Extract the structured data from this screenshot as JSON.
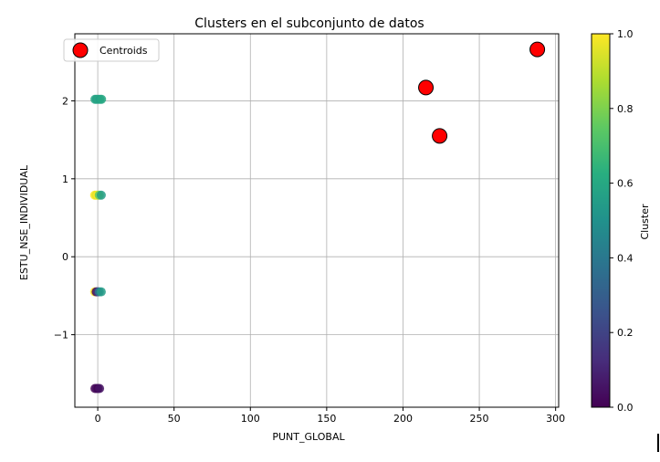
{
  "chart_data": {
    "type": "scatter",
    "title": "Clusters en el subconjunto de datos",
    "xlabel": "PUNT_GLOBAL",
    "ylabel": "ESTU_NSE_INDIVIDUAL",
    "xlim": [
      -15,
      302
    ],
    "ylim": [
      -1.93,
      2.86
    ],
    "x_ticks": [
      0,
      50,
      100,
      150,
      200,
      250,
      300
    ],
    "y_ticks": [
      -1,
      0,
      1,
      2
    ],
    "x_tick_labels": [
      "0",
      "50",
      "100",
      "150",
      "200",
      "250",
      "300"
    ],
    "y_tick_labels": [
      "−1",
      "0",
      "1",
      "2"
    ],
    "grid": true,
    "legend": {
      "position": "top-left",
      "entries": [
        "Centroids"
      ]
    },
    "colorbar": {
      "label": "Cluster",
      "colormap": "viridis",
      "range": [
        0.0,
        1.0
      ],
      "ticks": [
        0.0,
        0.2,
        0.4,
        0.6,
        0.8,
        1.0
      ],
      "tick_labels": [
        "0.0",
        "0.2",
        "0.4",
        "0.6",
        "0.8",
        "1.0"
      ]
    },
    "data_points": [
      {
        "x": -1.8,
        "y": 2.02,
        "cluster": 0.6
      },
      {
        "x": -0.8,
        "y": 2.02,
        "cluster": 0.55
      },
      {
        "x": 0.3,
        "y": 2.02,
        "cluster": 0.6
      },
      {
        "x": 1.5,
        "y": 2.02,
        "cluster": 0.55
      },
      {
        "x": 2.5,
        "y": 2.02,
        "cluster": 0.6
      },
      {
        "x": -2.0,
        "y": 0.79,
        "cluster": 1.0
      },
      {
        "x": -1.0,
        "y": 0.79,
        "cluster": 0.95
      },
      {
        "x": 0.0,
        "y": 0.79,
        "cluster": 1.0
      },
      {
        "x": 1.0,
        "y": 0.79,
        "cluster": 0.75
      },
      {
        "x": 2.3,
        "y": 0.79,
        "cluster": 0.55
      },
      {
        "x": -2.0,
        "y": -0.45,
        "cluster": 1.0
      },
      {
        "x": -1.0,
        "y": -0.45,
        "cluster": 0.0
      },
      {
        "x": 0.0,
        "y": -0.45,
        "cluster": 0.15
      },
      {
        "x": 1.0,
        "y": -0.45,
        "cluster": 0.4
      },
      {
        "x": 2.3,
        "y": -0.45,
        "cluster": 0.55
      },
      {
        "x": -1.8,
        "y": -1.69,
        "cluster": 0.0
      },
      {
        "x": -0.8,
        "y": -1.69,
        "cluster": 0.05
      },
      {
        "x": 0.2,
        "y": -1.69,
        "cluster": 0.0
      },
      {
        "x": 1.2,
        "y": -1.69,
        "cluster": 0.05
      }
    ],
    "centroids": [
      {
        "x": 215,
        "y": 2.17
      },
      {
        "x": 224,
        "y": 1.55
      },
      {
        "x": 288,
        "y": 2.66
      }
    ],
    "colors": {
      "centroid_fill": "#ff0000",
      "centroid_edge": "#000000",
      "grid": "#b0b0b0"
    }
  }
}
